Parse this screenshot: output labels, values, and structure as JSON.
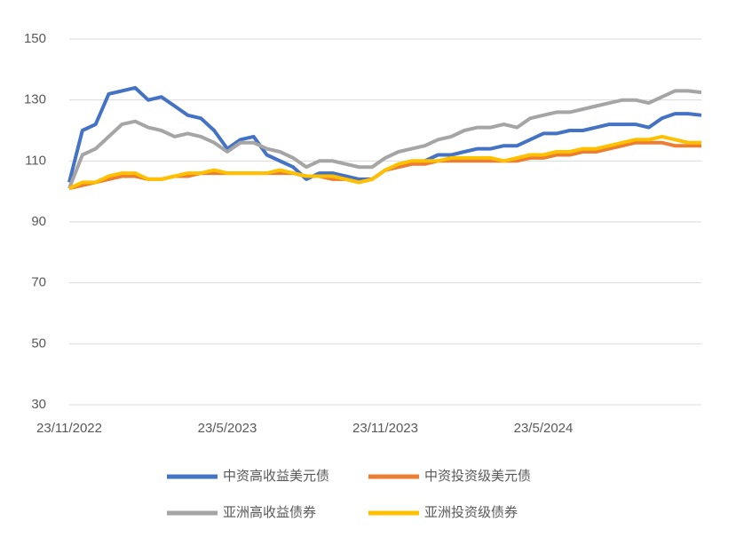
{
  "chart_data": {
    "type": "line",
    "categories": [
      "23/11/2022",
      null,
      null,
      null,
      null,
      null,
      null,
      null,
      null,
      null,
      null,
      null,
      "23/5/2023",
      null,
      null,
      null,
      null,
      null,
      null,
      null,
      null,
      null,
      null,
      null,
      "23/11/2023",
      null,
      null,
      null,
      null,
      null,
      null,
      null,
      null,
      null,
      null,
      null,
      "23/5/2024",
      null,
      null,
      null,
      null,
      null,
      null,
      null,
      null,
      null,
      null,
      null,
      null
    ],
    "series": [
      {
        "name": "中资高收益美元债",
        "color": "#4472c4",
        "values": [
          103,
          120,
          122,
          132,
          133,
          134,
          130,
          131,
          128,
          125,
          124,
          120,
          114,
          117,
          118,
          112,
          110,
          108,
          104,
          106,
          106,
          105,
          104,
          104,
          107,
          108,
          109,
          110,
          112,
          112,
          113,
          114,
          114,
          115,
          115,
          117,
          119,
          119,
          120,
          120,
          121,
          122,
          122,
          122,
          121,
          124,
          125.5,
          125.5,
          125
        ]
      },
      {
        "name": "中资投资级美元债",
        "color": "#ed7d31",
        "values": [
          101,
          102,
          103,
          104,
          105,
          105,
          104,
          104,
          105,
          105,
          106,
          106,
          106,
          106,
          106,
          106,
          106,
          106,
          105,
          105,
          104,
          104,
          103,
          104,
          107,
          108,
          109,
          109,
          110,
          110,
          110,
          110,
          110,
          110,
          110,
          111,
          111,
          112,
          112,
          113,
          113,
          114,
          115,
          116,
          116,
          116,
          115,
          115,
          115
        ]
      },
      {
        "name": "亚洲高收益债券",
        "color": "#a5a5a5",
        "values": [
          101,
          112,
          114,
          118,
          122,
          123,
          121,
          120,
          118,
          119,
          118,
          116,
          113,
          116,
          116,
          114,
          113,
          111,
          108,
          110,
          110,
          109,
          108,
          108,
          111,
          113,
          114,
          115,
          117,
          118,
          120,
          121,
          121,
          122,
          121,
          124,
          125,
          126,
          126,
          127,
          128,
          129,
          130,
          130,
          129,
          131,
          133,
          133,
          132.5
        ]
      },
      {
        "name": "亚洲投资级债券",
        "color": "#ffc000",
        "values": [
          101,
          103,
          103,
          105,
          106,
          106,
          104,
          104,
          105,
          106,
          106,
          107,
          106,
          106,
          106,
          106,
          107,
          106,
          105,
          105,
          105,
          104,
          103,
          104,
          107,
          109,
          110,
          110,
          110,
          111,
          111,
          111,
          111,
          110,
          111,
          112,
          112,
          113,
          113,
          114,
          114,
          115,
          116,
          117,
          117,
          118,
          117,
          116,
          116
        ]
      }
    ],
    "ylim": [
      30,
      150
    ],
    "yticks": [
      30,
      50,
      70,
      90,
      110,
      130,
      150
    ],
    "grid": true
  }
}
